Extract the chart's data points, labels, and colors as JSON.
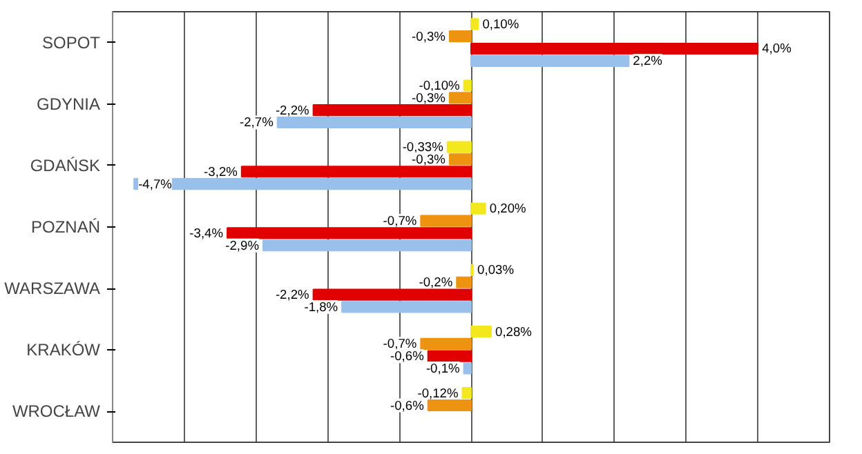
{
  "chart_data": {
    "type": "bar",
    "orientation": "horizontal",
    "categories": [
      "SOPOT",
      "GDYNIA",
      "GDAŃSK",
      "POZNAŃ",
      "WARSZAWA",
      "KRAKÓW",
      "WROCŁAW"
    ],
    "series": [
      {
        "color": "#f2e81c",
        "values": [
          0.1,
          -0.1,
          -0.33,
          0.2,
          0.03,
          0.28,
          -0.12
        ],
        "value_labels": [
          "0,10%",
          "-0,10%",
          "-0,33%",
          "0,20%",
          "0,03%",
          "0,28%",
          "-0,12%"
        ]
      },
      {
        "color": "#ee9212",
        "values": [
          -0.3,
          -0.3,
          -0.3,
          -0.7,
          -0.2,
          -0.7,
          -0.6
        ],
        "value_labels": [
          "-0,3%",
          "-0,3%",
          "-0,3%",
          "-0,7%",
          "-0,2%",
          "-0,7%",
          "-0,6%"
        ]
      },
      {
        "color": "#e00000",
        "values": [
          4.0,
          -2.2,
          -3.2,
          -3.4,
          -2.2,
          -0.6,
          null
        ],
        "value_labels": [
          "4,0%",
          "-2,2%",
          "-3,2%",
          "-3,4%",
          "-2,2%",
          "-0,6%",
          null
        ]
      },
      {
        "color": "#99c0ea",
        "values": [
          2.2,
          -2.7,
          -4.7,
          -2.9,
          -1.8,
          -0.1,
          null
        ],
        "value_labels": [
          "2,2%",
          "-2,7%",
          "-4,7%",
          "-2,9%",
          "-1,8%",
          "-0,1%",
          null
        ]
      }
    ],
    "xlim": [
      -5,
      5
    ],
    "xticks": [
      {
        "value": -5,
        "label": null
      },
      {
        "value": -4,
        "label": null
      },
      {
        "value": -3,
        "label": null
      },
      {
        "value": -2,
        "label": null
      },
      {
        "value": -1,
        "label": null
      },
      {
        "value": 0,
        "label": null
      },
      {
        "value": 1,
        "label": null
      },
      {
        "value": 2,
        "label": null
      },
      {
        "value": 3,
        "label": null
      },
      {
        "value": 4,
        "label": null
      },
      {
        "value": 5,
        "label": null
      }
    ],
    "tick_labels": "y",
    "grid": "x"
  }
}
